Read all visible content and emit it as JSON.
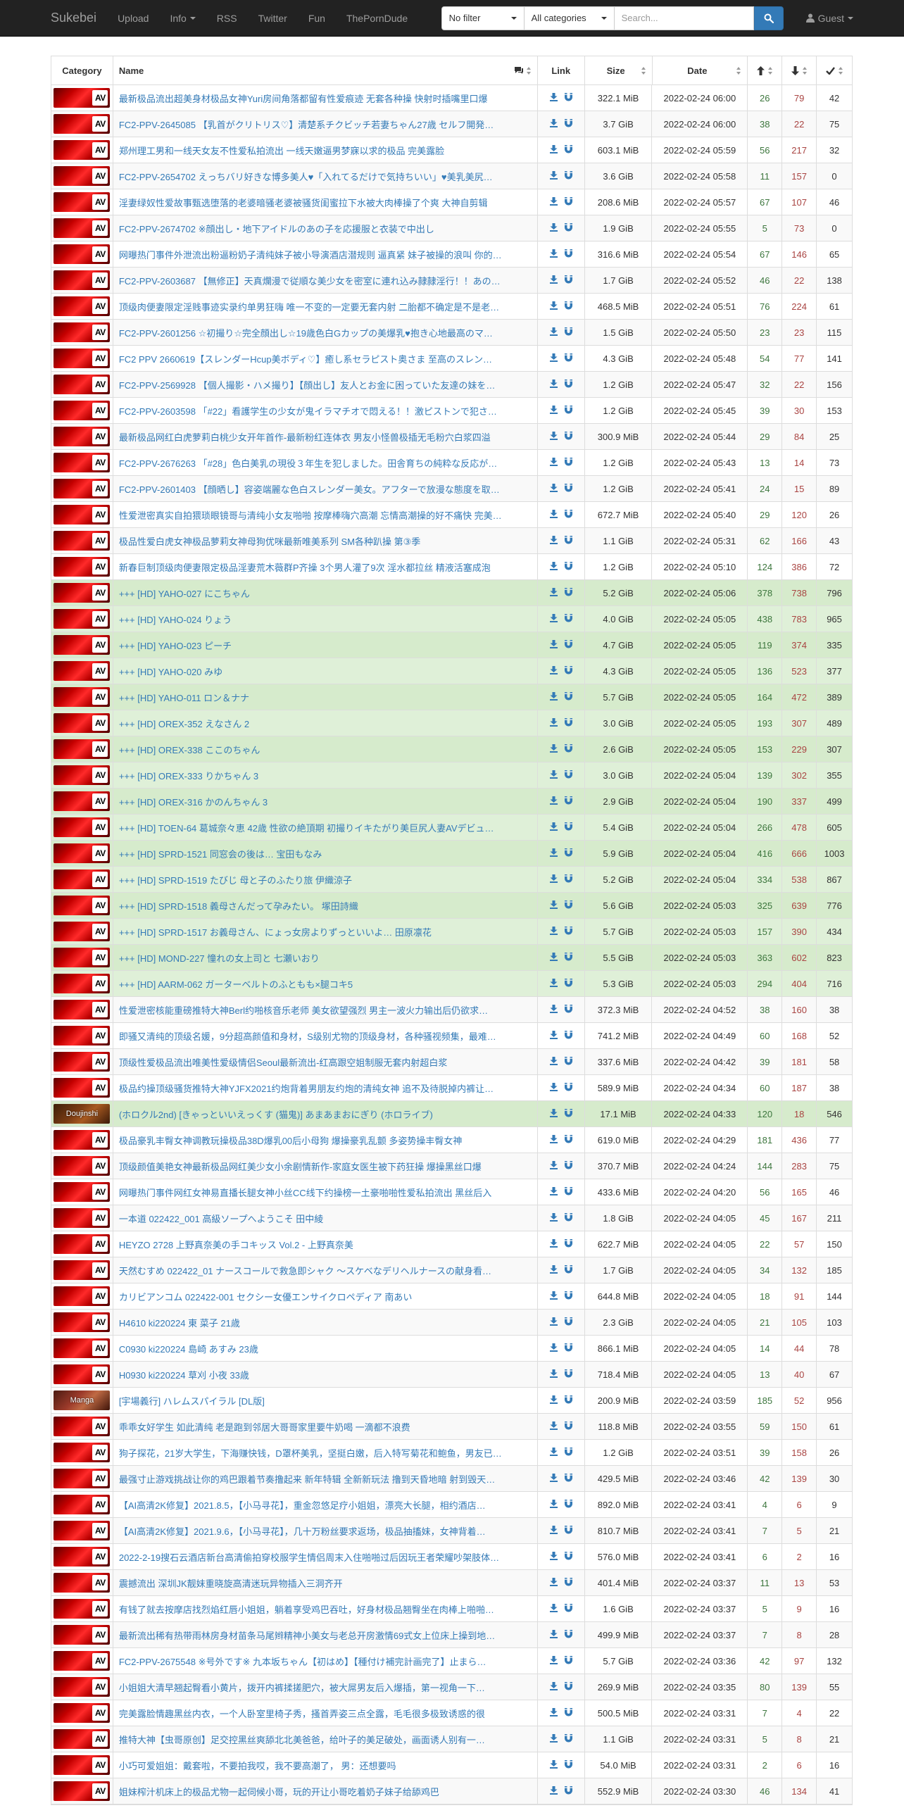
{
  "navbar": {
    "brand": "Sukebei",
    "links": [
      "Upload",
      "Info",
      "RSS",
      "Twitter",
      "Fun",
      "ThePornDude"
    ],
    "filter_select": "No filter",
    "category_select": "All categories",
    "search_placeholder": "Search...",
    "user_menu": "Guest"
  },
  "table": {
    "headers": {
      "category": "Category",
      "name": "Name",
      "link": "Link",
      "size": "Size",
      "date": "Date"
    },
    "rows": [
      {
        "cat": "AV",
        "name": "最新极品流出超美身材极品女神Yuri房间角落都留有性爱痕迹 无套各种操 快射时插嘴里口爆",
        "size": "322.1 MiB",
        "date": "2022-02-24 06:00",
        "seeders": "26",
        "leechers": "79",
        "downloads": "42",
        "status": "default"
      },
      {
        "cat": "AV",
        "name": "FC2-PPV-2645085 【乳首がクリトリス♡】清楚系チクビッチ若妻ちゃん27歳 セルフ開発…",
        "size": "3.7 GiB",
        "date": "2022-02-24 06:00",
        "seeders": "38",
        "leechers": "22",
        "downloads": "75",
        "status": "default"
      },
      {
        "cat": "AV",
        "name": "郑州理工男和一线天女友不性爱私拍流出 一线天嫩逼男梦寐以求的极品 完美露脸",
        "size": "603.1 MiB",
        "date": "2022-02-24 05:59",
        "seeders": "56",
        "leechers": "217",
        "downloads": "32",
        "status": "default"
      },
      {
        "cat": "AV",
        "name": "FC2-PPV-2654702 えっちバリ好きな博多美人♥「入れてるだけで気持ちいい」♥美乳美尻…",
        "size": "3.6 GiB",
        "date": "2022-02-24 05:58",
        "seeders": "11",
        "leechers": "157",
        "downloads": "0",
        "status": "default"
      },
      {
        "cat": "AV",
        "name": "淫妻绿奴性爱故事甄选堕落的老婆暗骚老婆被骚货闺蜜拉下水被大肉棒操了个爽 大神自剪辑",
        "size": "208.6 MiB",
        "date": "2022-02-24 05:57",
        "seeders": "67",
        "leechers": "107",
        "downloads": "46",
        "status": "default"
      },
      {
        "cat": "AV",
        "name": "FC2-PPV-2674702 ※顔出し・地下アイドルのあの子を応援服と衣装で中出し",
        "size": "1.9 GiB",
        "date": "2022-02-24 05:55",
        "seeders": "5",
        "leechers": "73",
        "downloads": "0",
        "status": "default"
      },
      {
        "cat": "AV",
        "name": "网曝热门事件外泄流出粉逼粉奶子清纯妹子被小导演酒店潜规则 逼真紧 妹子被操的浪叫 你的…",
        "size": "316.6 MiB",
        "date": "2022-02-24 05:54",
        "seeders": "67",
        "leechers": "146",
        "downloads": "65",
        "status": "default"
      },
      {
        "cat": "AV",
        "name": "FC2-PPV-2603687 【無修正】天真爛漫で従順な美少女を密室に連れ込み隷隷淫行！！あの…",
        "size": "1.7 GiB",
        "date": "2022-02-24 05:52",
        "seeders": "46",
        "leechers": "22",
        "downloads": "138",
        "status": "default"
      },
      {
        "cat": "AV",
        "name": "顶级肉便妻限定淫贱事迹实录约单男狂嗨 唯一不变的一定要无套内射 二胎都不确定是不是老…",
        "size": "468.5 MiB",
        "date": "2022-02-24 05:51",
        "seeders": "76",
        "leechers": "224",
        "downloads": "61",
        "status": "default"
      },
      {
        "cat": "AV",
        "name": "FC2-PPV-2601256 ☆初撮り☆完全顔出し☆19歳色白Gカップの美爆乳♥抱き心地最高のマ…",
        "size": "1.5 GiB",
        "date": "2022-02-24 05:50",
        "seeders": "23",
        "leechers": "23",
        "downloads": "115",
        "status": "default"
      },
      {
        "cat": "AV",
        "name": "FC2 PPV 2660619【スレンダーHcup美ボディ♡】癒し系セラピスト奥さま 至高のスレン…",
        "size": "4.3 GiB",
        "date": "2022-02-24 05:48",
        "seeders": "54",
        "leechers": "77",
        "downloads": "141",
        "status": "default"
      },
      {
        "cat": "AV",
        "name": "FC2-PPV-2569928 【個人撮影・ハメ撮り】【顔出し】友人とお金に困っていた友達の妹を…",
        "size": "1.2 GiB",
        "date": "2022-02-24 05:47",
        "seeders": "32",
        "leechers": "22",
        "downloads": "156",
        "status": "default"
      },
      {
        "cat": "AV",
        "name": "FC2-PPV-2603598 「#22」看護学生の少女が鬼イラマチオで悶える！！激ピストンで犯さ…",
        "size": "1.2 GiB",
        "date": "2022-02-24 05:45",
        "seeders": "39",
        "leechers": "30",
        "downloads": "153",
        "status": "default"
      },
      {
        "cat": "AV",
        "name": "最新极品网红白虎萝莉白桃少女开年首作-最新粉红连体衣 男友小怪兽极插无毛粉穴白浆四溢",
        "size": "300.9 MiB",
        "date": "2022-02-24 05:44",
        "seeders": "29",
        "leechers": "84",
        "downloads": "25",
        "status": "default"
      },
      {
        "cat": "AV",
        "name": "FC2-PPV-2676263 「#28」色白美乳の現役３年生を犯しました。田舎育ちの純粋な反応が…",
        "size": "1.2 GiB",
        "date": "2022-02-24 05:43",
        "seeders": "13",
        "leechers": "14",
        "downloads": "73",
        "status": "default"
      },
      {
        "cat": "AV",
        "name": "FC2-PPV-2601403 【顔晒し】容姿端麗な色白スレンダー美女。アフターで放漫な態度を取…",
        "size": "1.2 GiB",
        "date": "2022-02-24 05:41",
        "seeders": "24",
        "leechers": "15",
        "downloads": "89",
        "status": "default"
      },
      {
        "cat": "AV",
        "name": "性爱泄密真实自拍猥琐眼镜哥与清纯小女友啪啪 按摩棒嗨穴高潮 忘情高潮操的好不痛快 完美…",
        "size": "672.7 MiB",
        "date": "2022-02-24 05:40",
        "seeders": "29",
        "leechers": "120",
        "downloads": "26",
        "status": "default"
      },
      {
        "cat": "AV",
        "name": "极品性爱白虎女神极品萝莉女神母狗优咪最新唯美系列 SM各种趴操 第③季",
        "size": "1.1 GiB",
        "date": "2022-02-24 05:31",
        "seeders": "62",
        "leechers": "166",
        "downloads": "43",
        "status": "default"
      },
      {
        "cat": "AV",
        "name": "新春巨制顶级肉便妻限定极品淫妻荒木薇群P齐操 3个男人灌了9次 淫水都拉丝 精液活塞成泡",
        "size": "1.2 GiB",
        "date": "2022-02-24 05:10",
        "seeders": "124",
        "leechers": "386",
        "downloads": "72",
        "status": "default"
      },
      {
        "cat": "AV",
        "name": "+++ [HD] YAHO-027 にこちゃん",
        "size": "5.2 GiB",
        "date": "2022-02-24 05:06",
        "seeders": "378",
        "leechers": "738",
        "downloads": "796",
        "status": "success"
      },
      {
        "cat": "AV",
        "name": "+++ [HD] YAHO-024 りょう",
        "size": "4.0 GiB",
        "date": "2022-02-24 05:05",
        "seeders": "438",
        "leechers": "783",
        "downloads": "965",
        "status": "success"
      },
      {
        "cat": "AV",
        "name": "+++ [HD] YAHO-023 ピーチ",
        "size": "4.7 GiB",
        "date": "2022-02-24 05:05",
        "seeders": "119",
        "leechers": "374",
        "downloads": "335",
        "status": "success"
      },
      {
        "cat": "AV",
        "name": "+++ [HD] YAHO-020 みゆ",
        "size": "4.3 GiB",
        "date": "2022-02-24 05:05",
        "seeders": "136",
        "leechers": "523",
        "downloads": "377",
        "status": "success"
      },
      {
        "cat": "AV",
        "name": "+++ [HD] YAHO-011 ロン＆ナナ",
        "size": "5.7 GiB",
        "date": "2022-02-24 05:05",
        "seeders": "164",
        "leechers": "472",
        "downloads": "389",
        "status": "success"
      },
      {
        "cat": "AV",
        "name": "+++ [HD] OREX-352 えなさん 2",
        "size": "3.0 GiB",
        "date": "2022-02-24 05:05",
        "seeders": "193",
        "leechers": "307",
        "downloads": "489",
        "status": "success"
      },
      {
        "cat": "AV",
        "name": "+++ [HD] OREX-338 ここのちゃん",
        "size": "2.6 GiB",
        "date": "2022-02-24 05:05",
        "seeders": "153",
        "leechers": "229",
        "downloads": "307",
        "status": "success"
      },
      {
        "cat": "AV",
        "name": "+++ [HD] OREX-333 りかちゃん 3",
        "size": "3.0 GiB",
        "date": "2022-02-24 05:04",
        "seeders": "139",
        "leechers": "302",
        "downloads": "355",
        "status": "success"
      },
      {
        "cat": "AV",
        "name": "+++ [HD] OREX-316 かのんちゃん 3",
        "size": "2.9 GiB",
        "date": "2022-02-24 05:04",
        "seeders": "190",
        "leechers": "337",
        "downloads": "499",
        "status": "success"
      },
      {
        "cat": "AV",
        "name": "+++ [HD] TOEN-64 葛城奈々恵 42歳 性欲の絶頂期 初撮りイキたがり美巨尻人妻AVデビュ…",
        "size": "5.4 GiB",
        "date": "2022-02-24 05:04",
        "seeders": "266",
        "leechers": "478",
        "downloads": "605",
        "status": "success"
      },
      {
        "cat": "AV",
        "name": "+++ [HD] SPRD-1521 同窓会の後は… 宝田もなみ",
        "size": "5.9 GiB",
        "date": "2022-02-24 05:04",
        "seeders": "416",
        "leechers": "666",
        "downloads": "1003",
        "status": "success"
      },
      {
        "cat": "AV",
        "name": "+++ [HD] SPRD-1519 たびじ 母と子のふたり旅 伊織涼子",
        "size": "5.2 GiB",
        "date": "2022-02-24 05:04",
        "seeders": "334",
        "leechers": "538",
        "downloads": "867",
        "status": "success"
      },
      {
        "cat": "AV",
        "name": "+++ [HD] SPRD-1518 義母さんだって孕みたい。 塚田詩織",
        "size": "5.6 GiB",
        "date": "2022-02-24 05:03",
        "seeders": "325",
        "leechers": "639",
        "downloads": "776",
        "status": "success"
      },
      {
        "cat": "AV",
        "name": "+++ [HD] SPRD-1517 お義母さん、にょっ女房よりずっといいよ… 田原凛花",
        "size": "5.7 GiB",
        "date": "2022-02-24 05:03",
        "seeders": "157",
        "leechers": "390",
        "downloads": "434",
        "status": "success"
      },
      {
        "cat": "AV",
        "name": "+++ [HD] MOND-227 憧れの女上司と 七瀬いおり",
        "size": "5.5 GiB",
        "date": "2022-02-24 05:03",
        "seeders": "363",
        "leechers": "602",
        "downloads": "823",
        "status": "success"
      },
      {
        "cat": "AV",
        "name": "+++ [HD] AARM-062 ガーターベルトのふともも×腿コキ5",
        "size": "5.3 GiB",
        "date": "2022-02-24 05:03",
        "seeders": "294",
        "leechers": "404",
        "downloads": "716",
        "status": "success"
      },
      {
        "cat": "AV",
        "name": "性爱泄密核能重磅推特大神Berl约啪核音乐老师 美女欲望强烈 男主一波火力输出后仍欲求…",
        "size": "372.3 MiB",
        "date": "2022-02-24 04:52",
        "seeders": "38",
        "leechers": "160",
        "downloads": "38",
        "status": "default"
      },
      {
        "cat": "AV",
        "name": "即骚又清纯的顶级名媛，9分超高颜值和身材，S级别尤物的顶级身材，各种骚视频集，最难…",
        "size": "741.2 MiB",
        "date": "2022-02-24 04:49",
        "seeders": "60",
        "leechers": "168",
        "downloads": "52",
        "status": "default"
      },
      {
        "cat": "AV",
        "name": "顶级性爱极品流出唯美性爱级情侣Seoul最新流出-红高跟空姐制服无套内射超白浆",
        "size": "337.6 MiB",
        "date": "2022-02-24 04:42",
        "seeders": "39",
        "leechers": "181",
        "downloads": "58",
        "status": "default"
      },
      {
        "cat": "AV",
        "name": "极品约操顶级骚货推特大神YJFX2021约炮背着男朋友约炮的清纯女神 追不及待脱掉内裤让…",
        "size": "589.9 MiB",
        "date": "2022-02-24 04:34",
        "seeders": "60",
        "leechers": "187",
        "downloads": "38",
        "status": "default"
      },
      {
        "cat": "Doujinshi",
        "name": "(ホロクル2nd) [きゃっといいえっくす (猫鬼)] あまあまおにぎり (ホロライブ)",
        "size": "17.1 MiB",
        "date": "2022-02-24 04:33",
        "seeders": "120",
        "leechers": "18",
        "downloads": "546",
        "status": "success"
      },
      {
        "cat": "AV",
        "name": "极品豪乳丰臀女神调教玩操极品38D爆乳00后小母狗 爆操豪乳乱颤 多姿势操丰臀女神",
        "size": "619.0 MiB",
        "date": "2022-02-24 04:29",
        "seeders": "181",
        "leechers": "436",
        "downloads": "77",
        "status": "default"
      },
      {
        "cat": "AV",
        "name": "顶级颜值美艳女神最新极品网红美少女小余剧情新作-家庭女医生被下药狂操 爆操黑丝口爆",
        "size": "370.7 MiB",
        "date": "2022-02-24 04:24",
        "seeders": "144",
        "leechers": "283",
        "downloads": "75",
        "status": "default"
      },
      {
        "cat": "AV",
        "name": "网曝热门事件网红女神易直播长腿女神小丝CC线下约操榜一土豪啪啪性爱私拍流出 黑丝后入",
        "size": "433.6 MiB",
        "date": "2022-02-24 04:20",
        "seeders": "56",
        "leechers": "165",
        "downloads": "46",
        "status": "default"
      },
      {
        "cat": "AV",
        "name": "一本道 022422_001 高級ソープへようこそ 田中綾",
        "size": "1.8 GiB",
        "date": "2022-02-24 04:05",
        "seeders": "45",
        "leechers": "167",
        "downloads": "211",
        "status": "default"
      },
      {
        "cat": "AV",
        "name": "HEYZO 2728 上野真奈美の手コキッス Vol.2 - 上野真奈美",
        "size": "622.7 MiB",
        "date": "2022-02-24 04:05",
        "seeders": "22",
        "leechers": "57",
        "downloads": "150",
        "status": "default"
      },
      {
        "cat": "AV",
        "name": "天然むすめ 022422_01 ナースコールで救急即シャク ～スケベなデリヘルナースの献身看…",
        "size": "1.7 GiB",
        "date": "2022-02-24 04:05",
        "seeders": "34",
        "leechers": "132",
        "downloads": "185",
        "status": "default"
      },
      {
        "cat": "AV",
        "name": "カリビアンコム 022422-001 セクシー女優エンサイクロペディア 南あい",
        "size": "644.8 MiB",
        "date": "2022-02-24 04:05",
        "seeders": "18",
        "leechers": "91",
        "downloads": "144",
        "status": "default"
      },
      {
        "cat": "AV",
        "name": "H4610 ki220224 東 菜子 21歳",
        "size": "2.3 GiB",
        "date": "2022-02-24 04:05",
        "seeders": "21",
        "leechers": "105",
        "downloads": "103",
        "status": "default"
      },
      {
        "cat": "AV",
        "name": "C0930 ki220224 島崎 あすみ 23歳",
        "size": "866.1 MiB",
        "date": "2022-02-24 04:05",
        "seeders": "14",
        "leechers": "44",
        "downloads": "78",
        "status": "default"
      },
      {
        "cat": "AV",
        "name": "H0930 ki220224 草刈 小夜 33歳",
        "size": "718.4 MiB",
        "date": "2022-02-24 04:05",
        "seeders": "13",
        "leechers": "40",
        "downloads": "67",
        "status": "default"
      },
      {
        "cat": "Manga",
        "name": "[宇場義行] ハレムスパイラル [DL版]",
        "size": "200.9 MiB",
        "date": "2022-02-24 03:59",
        "seeders": "185",
        "leechers": "52",
        "downloads": "956",
        "status": "default"
      },
      {
        "cat": "AV",
        "name": "乖乖女好学生 如此清纯 老是跑到邻居大哥哥家里要牛奶喝 一滴都不浪费",
        "size": "118.8 MiB",
        "date": "2022-02-24 03:55",
        "seeders": "59",
        "leechers": "150",
        "downloads": "61",
        "status": "default"
      },
      {
        "cat": "AV",
        "name": "狗子探花，21岁大学生，下海赚快钱，D罩杯美乳，坚挺白嫩，后入特写菊花和鲍鱼，男友已…",
        "size": "1.2 GiB",
        "date": "2022-02-24 03:51",
        "seeders": "39",
        "leechers": "158",
        "downloads": "26",
        "status": "default"
      },
      {
        "cat": "AV",
        "name": "最强寸止游戏挑战让你的鸡巴跟着节奏撸起来 新年特辑 全新新玩法 撸到天昏地暗 射到毁天…",
        "size": "429.5 MiB",
        "date": "2022-02-24 03:46",
        "seeders": "42",
        "leechers": "139",
        "downloads": "30",
        "status": "default"
      },
      {
        "cat": "AV",
        "name": "【AI高清2K修复】2021.8.5，【小马寻花】，重金忽悠足疗小姐姐，漂亮大长腿，相约酒店…",
        "size": "892.0 MiB",
        "date": "2022-02-24 03:41",
        "seeders": "4",
        "leechers": "6",
        "downloads": "9",
        "status": "default"
      },
      {
        "cat": "AV",
        "name": "【AI高清2K修复】2021.9.6，【小马寻花】，几十万粉丝要求返场，极品抽搐妹，女神背着…",
        "size": "810.7 MiB",
        "date": "2022-02-24 03:41",
        "seeders": "7",
        "leechers": "5",
        "downloads": "21",
        "status": "default"
      },
      {
        "cat": "AV",
        "name": "2022-2-19搜石云酒店新台高清偷拍穿校服学生情侣周末入住啪啪过后因玩王者荣耀吵架肢体…",
        "size": "576.0 MiB",
        "date": "2022-02-24 03:41",
        "seeders": "6",
        "leechers": "2",
        "downloads": "16",
        "status": "default"
      },
      {
        "cat": "AV",
        "name": "震撼流出 深圳JK靓妹重晓旋高清迷玩异物插入三洞齐开",
        "size": "401.4 MiB",
        "date": "2022-02-24 03:37",
        "seeders": "11",
        "leechers": "13",
        "downloads": "53",
        "status": "default"
      },
      {
        "cat": "AV",
        "name": "有钱了就去按摩店找烈焰红唇小姐姐，躺着享受鸡巴吞吐，好身材极品翘臀坐在肉棒上啪啪…",
        "size": "1.6 GiB",
        "date": "2022-02-24 03:37",
        "seeders": "5",
        "leechers": "9",
        "downloads": "16",
        "status": "default"
      },
      {
        "cat": "AV",
        "name": "最新流出稀有热带雨林房身材苗条马尾辫精神小美女与老总开房激情69式女上位床上操到地…",
        "size": "499.9 MiB",
        "date": "2022-02-24 03:37",
        "seeders": "7",
        "leechers": "8",
        "downloads": "28",
        "status": "default"
      },
      {
        "cat": "AV",
        "name": " FC2-PPV-2675548 ※号外です※ 九本坂ちゃん【初はめ】【種付け補完計画完了】止まら…",
        "size": "5.7 GiB",
        "date": "2022-02-24 03:36",
        "seeders": "42",
        "leechers": "97",
        "downloads": "132",
        "status": "default"
      },
      {
        "cat": "AV",
        "name": "小姐姐大清早翘起臀看小黄片，拨开内裤揉搓肥穴，被大屌男友后入爆插，第一视角一下…",
        "size": "269.9 MiB",
        "date": "2022-02-24 03:35",
        "seeders": "80",
        "leechers": "139",
        "downloads": "55",
        "status": "default"
      },
      {
        "cat": "AV",
        "name": "完美露脸情趣黑丝内衣，一个人卧室里椅子秀，搔首弄姿三点全露，毛毛很多极致诱惑的很",
        "size": "500.5 MiB",
        "date": "2022-02-24 03:31",
        "seeders": "7",
        "leechers": "4",
        "downloads": "22",
        "status": "default"
      },
      {
        "cat": "AV",
        "name": "推特大神【虫哥原创】足交控黑丝爽舔北北美爸爸，给叶子的美足破处，画面诱人别有一…",
        "size": "1.1 GiB",
        "date": "2022-02-24 03:31",
        "seeders": "5",
        "leechers": "8",
        "downloads": "21",
        "status": "default"
      },
      {
        "cat": "AV",
        "name": "小巧可爱姐姐：戴套啦，不要拍我哎，我不要高潮了， 男：还想要吗",
        "size": "54.0 MiB",
        "date": "2022-02-24 03:31",
        "seeders": "2",
        "leechers": "6",
        "downloads": "16",
        "status": "default"
      },
      {
        "cat": "AV",
        "name": "姐妹榨汁机床上的极品尤物一起伺候小哥，玩的开让小哥吃着奶子妹子给舔鸡巴",
        "size": "552.9 MiB",
        "date": "2022-02-24 03:30",
        "seeders": "46",
        "leechers": "134",
        "downloads": "41",
        "status": "default"
      }
    ]
  },
  "colors": {
    "navbar_bg": "#222222",
    "link": "#337ab7",
    "seeders": "#3c763d",
    "leechers": "#a94442",
    "success_row": "#dff0d8"
  },
  "icons": {
    "comments": "comments-icon",
    "seeders": "arrow-up-icon",
    "leechers": "arrow-down-icon",
    "downloads": "check-icon",
    "download": "download-icon",
    "magnet": "magnet-icon",
    "search": "search-icon",
    "user": "user-icon"
  }
}
